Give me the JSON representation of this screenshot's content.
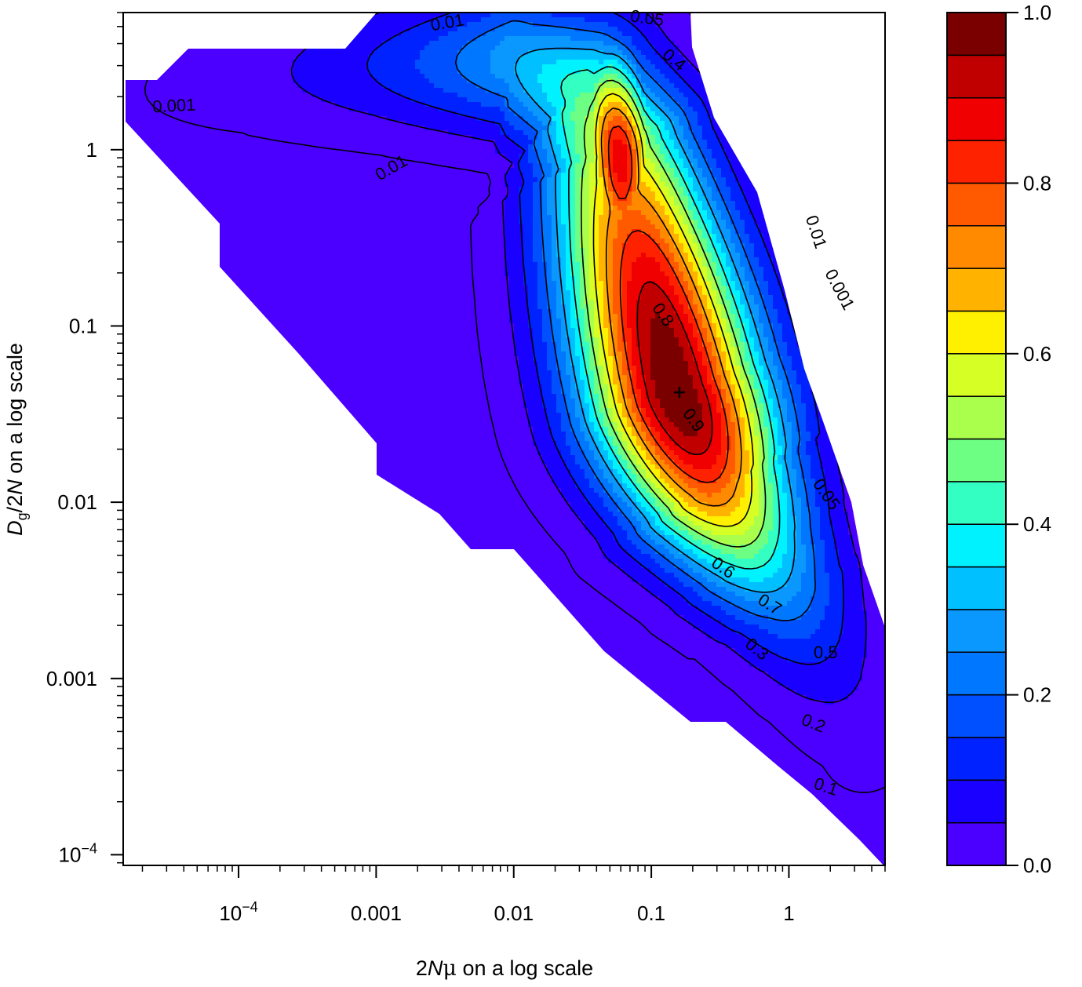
{
  "chart_data": {
    "type": "heatmap",
    "subtype": "filled-contour",
    "title": "",
    "xlabel": {
      "prefix": "2",
      "italic": "N",
      "greek": "μ",
      "suffix": " on a log scale"
    },
    "ylabel": {
      "italic": "D",
      "subscript": "g",
      "mid": "/2",
      "italic2": "N",
      "suffix": " on a log scale"
    },
    "x_scale": "log",
    "y_scale": "log",
    "xlim": [
      1.45e-05,
      5
    ],
    "ylim": [
      8.7e-05,
      6
    ],
    "x_ticks": [
      {
        "value": 0.0001,
        "base": "10",
        "exp": "−4"
      },
      {
        "value": 0.001,
        "label": "0.001"
      },
      {
        "value": 0.01,
        "label": "0.01"
      },
      {
        "value": 0.1,
        "label": "0.1"
      },
      {
        "value": 1,
        "label": "1"
      }
    ],
    "y_ticks": [
      {
        "value": 0.0001,
        "base": "10",
        "exp": "−4"
      },
      {
        "value": 0.001,
        "label": "0.001"
      },
      {
        "value": 0.01,
        "label": "0.01"
      },
      {
        "value": 0.1,
        "label": "0.1"
      },
      {
        "value": 1,
        "label": "1"
      }
    ],
    "colorbar": {
      "min": 0,
      "max": 1,
      "levels": [
        0,
        0.05,
        0.1,
        0.15,
        0.2,
        0.25,
        0.3,
        0.35,
        0.4,
        0.45,
        0.5,
        0.55,
        0.6,
        0.65,
        0.7,
        0.75,
        0.8,
        0.85,
        0.9,
        0.95,
        1.0
      ],
      "colors": [
        "#4b00ff",
        "#1a00ff",
        "#0022ff",
        "#0050ff",
        "#0077ff",
        "#0a98ff",
        "#00c0ff",
        "#00f2ff",
        "#33ffc2",
        "#6dff84",
        "#a9ff4c",
        "#d6ff26",
        "#fff000",
        "#ffb200",
        "#ff8a00",
        "#ff5a00",
        "#ff2200",
        "#f00000",
        "#c00000",
        "#7a0000"
      ],
      "ticks": [
        {
          "value": 0.0,
          "label": "0.0"
        },
        {
          "value": 0.2,
          "label": "0.2"
        },
        {
          "value": 0.4,
          "label": "0.4"
        },
        {
          "value": 0.6,
          "label": "0.6"
        },
        {
          "value": 0.8,
          "label": "0.8"
        },
        {
          "value": 1.0,
          "label": "1.0"
        }
      ]
    },
    "mode": {
      "x": 0.16,
      "y": 0.042
    },
    "ridge": {
      "x": [
        1.5e-05,
        0.0001,
        0.001,
        0.01,
        0.03,
        0.055,
        0.08,
        0.15,
        0.3,
        0.6,
        1.0,
        1.5,
        2.2,
        3.5
      ],
      "y": [
        2.0,
        2.6,
        3.0,
        3.2,
        2.2,
        1.0,
        0.3,
        0.042,
        0.012,
        0.005,
        0.0028,
        0.0016,
        0.0009,
        0.0004
      ]
    },
    "contour_labels": [
      {
        "text": "0.001",
        "x": 3.4e-05,
        "y": 1.75,
        "angle": -3
      },
      {
        "text": "0.01",
        "x": 0.0013,
        "y": 0.78,
        "angle": -30
      },
      {
        "text": "0.01",
        "x": 0.0033,
        "y": 5.2,
        "angle": -10
      },
      {
        "text": "0.05",
        "x": 0.093,
        "y": 5.5,
        "angle": 8
      },
      {
        "text": "0.4",
        "x": 0.145,
        "y": 3.2,
        "angle": 40
      },
      {
        "text": "0.01",
        "x": 1.55,
        "y": 0.34,
        "angle": 72
      },
      {
        "text": "0.001",
        "x": 2.3,
        "y": 0.16,
        "angle": 62
      },
      {
        "text": "0.8",
        "x": 0.12,
        "y": 0.115,
        "angle": 55
      },
      {
        "text": "0.9",
        "x": 0.2,
        "y": 0.029,
        "angle": 55
      },
      {
        "text": "0.05",
        "x": 1.85,
        "y": 0.011,
        "angle": 55
      },
      {
        "text": "0.6",
        "x": 0.33,
        "y": 0.0042,
        "angle": 35
      },
      {
        "text": "0.7",
        "x": 0.72,
        "y": 0.0026,
        "angle": 32
      },
      {
        "text": "0.3",
        "x": 0.58,
        "y": 0.00145,
        "angle": 38
      },
      {
        "text": "0.5",
        "x": 1.85,
        "y": 0.00138,
        "angle": 0
      },
      {
        "text": "0.2",
        "x": 1.5,
        "y": 0.00055,
        "angle": 22
      },
      {
        "text": "0.1",
        "x": 1.85,
        "y": 0.00024,
        "angle": 18
      }
    ]
  }
}
